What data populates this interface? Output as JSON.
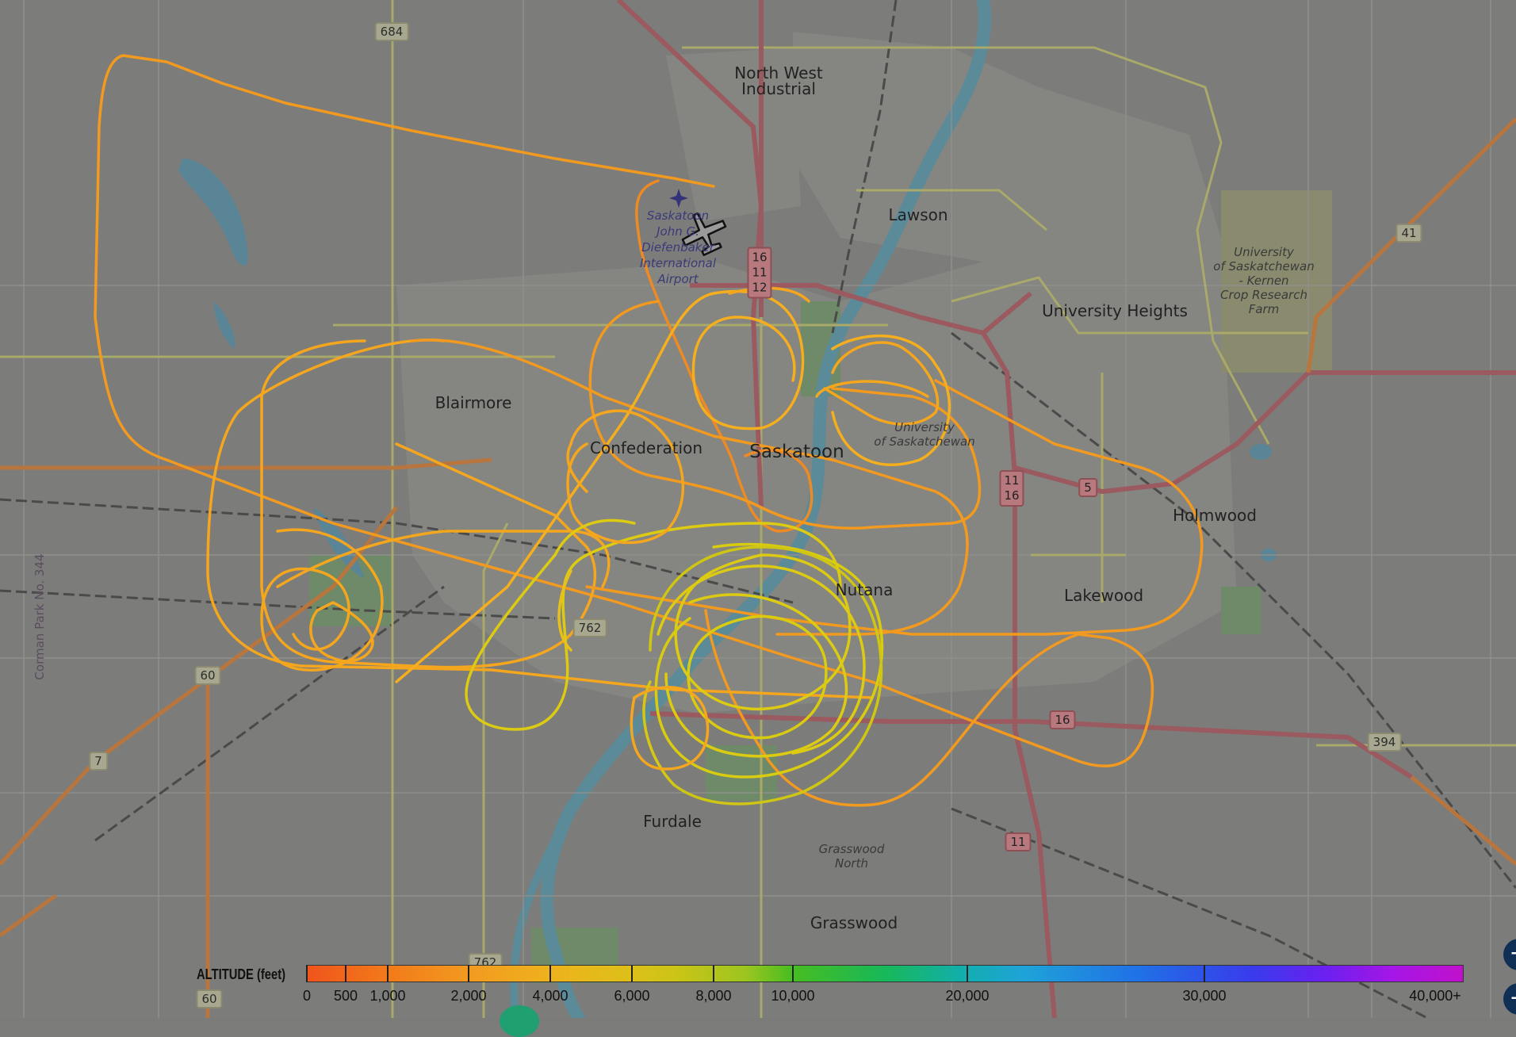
{
  "map": {
    "places": [
      {
        "id": "north-west-industrial",
        "text": "North West\nIndustrial"
      },
      {
        "id": "lawson",
        "text": "Lawson"
      },
      {
        "id": "university-heights",
        "text": "University Heights"
      },
      {
        "id": "university-kernen",
        "text": "University\nof Saskatchewan\n- Kernen\nCrop Research\nFarm"
      },
      {
        "id": "blairmore",
        "text": "Blairmore"
      },
      {
        "id": "confederation",
        "text": "Confederation"
      },
      {
        "id": "saskatoon",
        "text": "Saskatoon"
      },
      {
        "id": "university-of-saskatchewan",
        "text": "University\nof Saskatchewan"
      },
      {
        "id": "holmwood",
        "text": "Holmwood"
      },
      {
        "id": "nutana",
        "text": "Nutana"
      },
      {
        "id": "lakewood",
        "text": "Lakewood"
      },
      {
        "id": "furdale",
        "text": "Furdale"
      },
      {
        "id": "grasswood-north",
        "text": "Grasswood\nNorth"
      },
      {
        "id": "grasswood",
        "text": "Grasswood"
      },
      {
        "id": "corman-park",
        "text": "Corman Park No. 344"
      },
      {
        "id": "airport",
        "text": "Saskatoon\nJohn G.\nDiefenbaker\nInternational\nAirport"
      }
    ],
    "shields": [
      {
        "id": "684",
        "text": "684"
      },
      {
        "id": "16-11-12",
        "text": "16\n11\n12"
      },
      {
        "id": "41",
        "text": "41"
      },
      {
        "id": "11-16",
        "text": "11\n16"
      },
      {
        "id": "5",
        "text": "5"
      },
      {
        "id": "762",
        "text": "762"
      },
      {
        "id": "60",
        "text": "60"
      },
      {
        "id": "7",
        "text": "7"
      },
      {
        "id": "16",
        "text": "16"
      },
      {
        "id": "394",
        "text": "394"
      },
      {
        "id": "11",
        "text": "11"
      },
      {
        "id": "762b",
        "text": "762"
      },
      {
        "id": "60b",
        "text": "60"
      }
    ],
    "track_colors": {
      "low": "#f08a22",
      "mid": "#f4ae1e",
      "high": "#d9cc10"
    },
    "aircraft_icon": "small-plane-icon"
  },
  "legend": {
    "title": "ALTITUDE (feet)",
    "ticks": [
      "0",
      "500",
      "1,000",
      "2,000",
      "4,000",
      "6,000",
      "8,000",
      "10,000",
      "20,000",
      "30,000",
      "40,000+"
    ]
  },
  "controls": {
    "zoom_in": "+",
    "zoom_out": "−"
  }
}
